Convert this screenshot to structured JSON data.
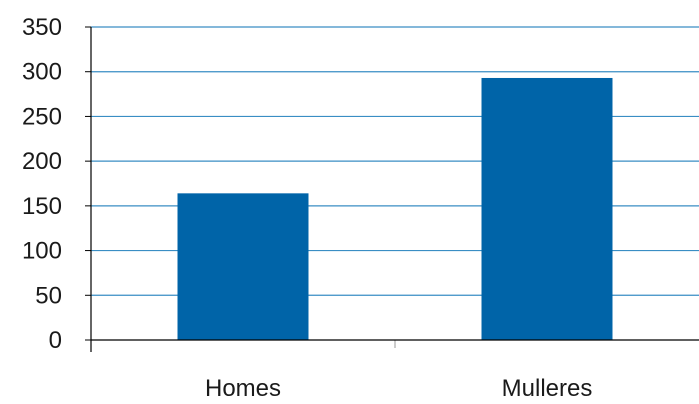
{
  "chart_data": {
    "type": "bar",
    "categories": [
      "Homes",
      "Mulleres"
    ],
    "values": [
      164,
      293
    ],
    "ylim": [
      0,
      350
    ],
    "yticks": [
      0,
      50,
      100,
      150,
      200,
      250,
      300,
      350
    ],
    "grid": true,
    "legend": "none",
    "colors": {
      "bar": "#0064a8",
      "grid": "#3a8ec4",
      "axis": "#000000"
    }
  }
}
